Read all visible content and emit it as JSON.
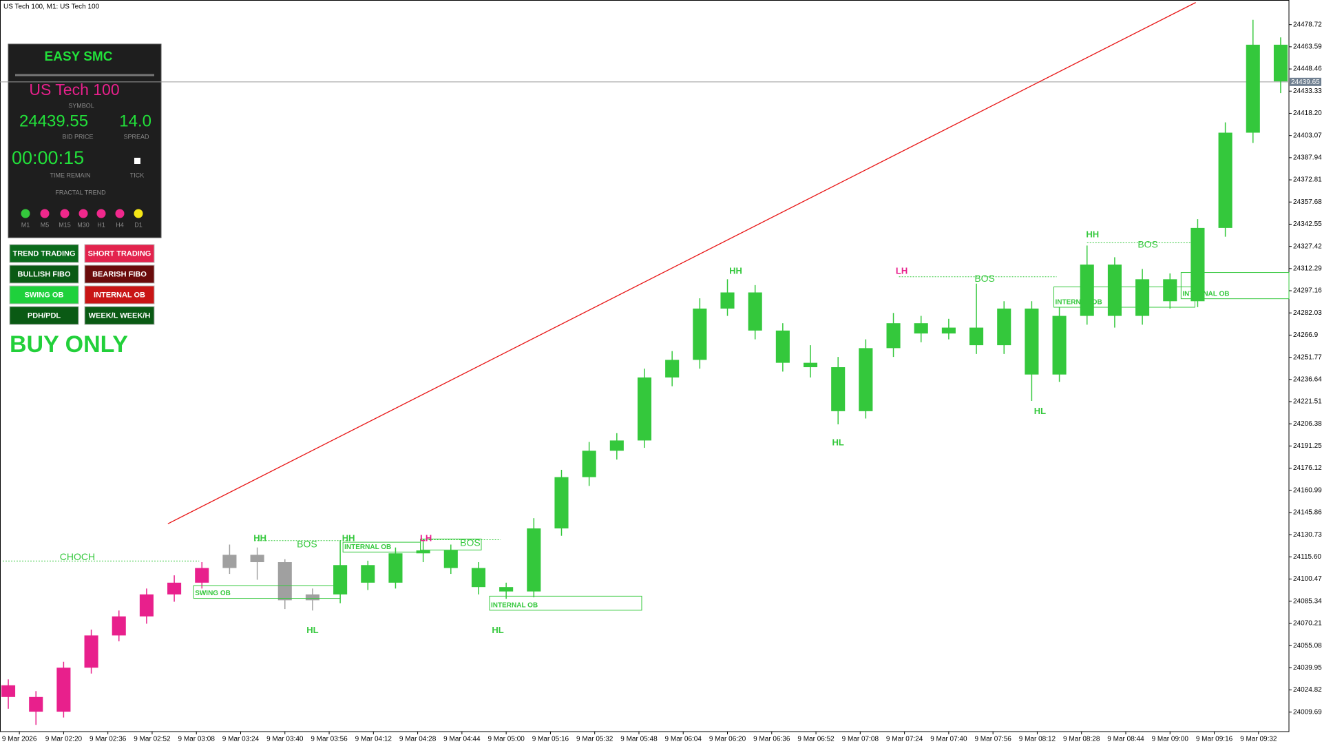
{
  "window_title": "US Tech 100, M1:  US Tech 100",
  "panel": {
    "title": "EASY SMC",
    "symbol": "US Tech 100",
    "symbol_label": "SYMBOL",
    "bid": "24439.55",
    "bid_label": "BID PRICE",
    "spread": "14.0",
    "spread_label": "SPREAD",
    "time": "00:00:15",
    "time_label": "TIME REMAIN",
    "tick_label": "TICK",
    "trend_label": "FRACTAL TREND",
    "trend": [
      {
        "tf": "M1",
        "color": "#34c83c"
      },
      {
        "tf": "M5",
        "color": "#f0288c"
      },
      {
        "tf": "M15",
        "color": "#f0288c"
      },
      {
        "tf": "M30",
        "color": "#f0288c"
      },
      {
        "tf": "H1",
        "color": "#f0288c"
      },
      {
        "tf": "H4",
        "color": "#f0288c"
      },
      {
        "tf": "D1",
        "color": "#f5e616"
      }
    ]
  },
  "buttons": [
    {
      "label": "TREND TRADING",
      "color": "#0b6b1c"
    },
    {
      "label": "SHORT TRADING",
      "color": "#e3234d"
    },
    {
      "label": "BULLISH FIBO",
      "color": "#0a5a14"
    },
    {
      "label": "BEARISH FIBO",
      "color": "#6a0b0b"
    },
    {
      "label": "SWING OB",
      "color": "#1fd13c"
    },
    {
      "label": "INTERNAL OB",
      "color": "#c91515"
    },
    {
      "label": "PDH/PDL",
      "color": "#0a5a14"
    },
    {
      "label": "WEEK/L WEEK/H",
      "color": "#0a5a14"
    }
  ],
  "mode_text": "BUY ONLY",
  "chart_data": {
    "type": "candlestick",
    "xlim": [
      117,
      583
    ],
    "ylim": [
      23996.4,
      24495.5
    ],
    "xticks": [
      {
        "value": 124,
        "label": "9 Mar 2026"
      },
      {
        "value": 140,
        "label": "9 Mar 02:20"
      },
      {
        "value": 156,
        "label": "9 Mar 02:36"
      },
      {
        "value": 172,
        "label": "9 Mar 02:52"
      },
      {
        "value": 188,
        "label": "9 Mar 03:08"
      },
      {
        "value": 204,
        "label": "9 Mar 03:24"
      },
      {
        "value": 220,
        "label": "9 Mar 03:40"
      },
      {
        "value": 236,
        "label": "9 Mar 03:56"
      },
      {
        "value": 252,
        "label": "9 Mar 04:12"
      },
      {
        "value": 268,
        "label": "9 Mar 04:28"
      },
      {
        "value": 284,
        "label": "9 Mar 04:44"
      },
      {
        "value": 300,
        "label": "9 Mar 05:00"
      },
      {
        "value": 316,
        "label": "9 Mar 05:16"
      },
      {
        "value": 332,
        "label": "9 Mar 05:32"
      },
      {
        "value": 348,
        "label": "9 Mar 05:48"
      },
      {
        "value": 364,
        "label": "9 Mar 06:04"
      },
      {
        "value": 380,
        "label": "9 Mar 06:20"
      },
      {
        "value": 396,
        "label": "9 Mar 06:36"
      },
      {
        "value": 412,
        "label": "9 Mar 06:52"
      },
      {
        "value": 428,
        "label": "9 Mar 07:08"
      },
      {
        "value": 444,
        "label": "9 Mar 07:24"
      },
      {
        "value": 460,
        "label": "9 Mar 07:40"
      },
      {
        "value": 476,
        "label": "9 Mar 07:56"
      },
      {
        "value": 492,
        "label": "9 Mar 08:12"
      },
      {
        "value": 508,
        "label": "9 Mar 08:28"
      },
      {
        "value": 524,
        "label": "9 Mar 08:44"
      },
      {
        "value": 540,
        "label": "9 Mar 09:00"
      },
      {
        "value": 556,
        "label": "9 Mar 09:16"
      },
      {
        "value": 572,
        "label": "9 Mar 09:32"
      }
    ],
    "yticks": [
      24009.69,
      24024.82,
      24039.95,
      24055.08,
      24070.21,
      24085.34,
      24100.47,
      {
        "value": 24115.6,
        "label": "24115.60"
      },
      24130.73,
      24145.86,
      24160.99,
      24176.12,
      24191.25,
      24206.38,
      24221.51,
      24236.64,
      24251.77,
      24266.9,
      24282.03,
      24297.16,
      24312.29,
      24327.42,
      24342.55,
      24357.68,
      24372.81,
      24387.94,
      24403.07,
      {
        "value": 24418.2,
        "label": "24418.20"
      },
      24433.33,
      24448.46,
      24463.59,
      24478.72
    ],
    "series": [
      {
        "color": "#e8208c",
        "x": [
          120,
          130,
          140,
          150,
          160,
          170,
          180,
          190
        ],
        "open": [
          24028,
          24020,
          24010,
          24040,
          24062,
          24075,
          24090,
          24098
        ],
        "high": [
          24032,
          24024,
          24044,
          24066,
          24079,
          24094,
          24103,
          24112
        ],
        "low": [
          24012,
          24001,
          24006,
          24036,
          24058,
          24070,
          24085,
          24094
        ],
        "close": [
          24020,
          24010,
          24040,
          24062,
          24075,
          24090,
          24098,
          24108
        ]
      },
      {
        "color": "#a0a0a0",
        "x": [
          200,
          210,
          220,
          230
        ],
        "open": [
          24108,
          24117,
          24112,
          24086
        ],
        "high": [
          24124,
          24122,
          24114,
          24094
        ],
        "low": [
          24104,
          24100,
          24080,
          24079
        ],
        "close": [
          24117,
          24112,
          24086,
          24090
        ]
      },
      {
        "color": "#34c83c",
        "x": [
          240,
          250,
          260,
          270,
          280,
          290,
          300,
          310,
          320,
          330,
          340,
          350,
          360,
          370,
          380,
          390,
          400,
          410,
          420,
          430,
          440,
          450,
          460,
          470,
          480,
          490,
          500,
          510,
          520,
          530,
          540,
          550,
          560,
          570,
          580
        ],
        "open": [
          24090,
          24110,
          24098,
          24118,
          24120,
          24108,
          24095,
          24092,
          24135,
          24170,
          24188,
          24195,
          24238,
          24250,
          24285,
          24296,
          24270,
          24248,
          24245,
          24215,
          24258,
          24275,
          24268,
          24272,
          24260,
          24285,
          24240,
          24280,
          24315,
          24280,
          24305,
          24290,
          24340,
          24405,
          24465
        ],
        "high": [
          24127,
          24113,
          24122,
          24128,
          24124,
          24112,
          24098,
          24142,
          24175,
          24194,
          24200,
          24244,
          24256,
          24292,
          24305,
          24301,
          24275,
          24260,
          24252,
          24264,
          24282,
          24280,
          24278,
          24302,
          24290,
          24290,
          24286,
          24328,
          24320,
          24312,
          24309,
          24346,
          24412,
          24482,
          24470
        ],
        "low": [
          24084,
          24093,
          24094,
          24112,
          24104,
          24090,
          24087,
          24088,
          24130,
          24164,
          24182,
          24190,
          24232,
          24244,
          24280,
          24264,
          24242,
          24238,
          24206,
          24210,
          24252,
          24262,
          24264,
          24254,
          24254,
          24222,
          24235,
          24274,
          24272,
          24274,
          24285,
          24286,
          24334,
          24398,
          24432
        ],
        "close": [
          24110,
          24098,
          24118,
          24120,
          24108,
          24095,
          24092,
          24135,
          24170,
          24188,
          24195,
          24238,
          24250,
          24285,
          24296,
          24270,
          24248,
          24245,
          24215,
          24258,
          24275,
          24268,
          24272,
          24260,
          24285,
          24240,
          24280,
          24315,
          24280,
          24305,
          24290,
          24340,
          24405,
          24465,
          24440
        ]
      }
    ],
    "trendline": {
      "color": "#e81818",
      "x": [
        177.7,
        549.3
      ],
      "values": [
        24138.2,
        24493.8
      ]
    },
    "price_line": {
      "value": 24439.65,
      "color": "#9a9a9a"
    },
    "levels": [
      {
        "x": [
          118,
          189
        ],
        "value": 24112.8
      },
      {
        "x": [
          209,
          243
        ],
        "value": 24126.7
      },
      {
        "x": [
          269,
          298
        ],
        "value": 24127.3
      },
      {
        "x": [
          442,
          499
        ],
        "value": 24306.7
      },
      {
        "x": [
          510,
          548
        ],
        "value": 24329.9
      }
    ],
    "zones": [
      {
        "x": [
          187,
          240
        ],
        "y": [
          24096.0,
          24087.3
        ],
        "label": "SWING OB"
      },
      {
        "x": [
          241,
          269
        ],
        "y": [
          24125.6,
          24118.9
        ],
        "label": "INTERNAL OB"
      },
      {
        "x": [
          269,
          291
        ],
        "y": [
          24127.8,
          24120.3
        ]
      },
      {
        "x": [
          294,
          349
        ],
        "y": [
          24088.8,
          24079.2
        ],
        "label": "INTERNAL OB"
      },
      {
        "x": [
          498,
          549
        ],
        "y": [
          24299.8,
          24285.9
        ],
        "label": "INTERNAL OB"
      },
      {
        "x": [
          544,
          583
        ],
        "y": [
          24309.6,
          24291.7
        ],
        "label": "INTERNAL OB"
      }
    ],
    "zone_color": "#34c83c",
    "labels": [
      {
        "text": "CHOCH",
        "x": 145,
        "y": 24115.1,
        "color": "#34c83c",
        "bold": false
      },
      {
        "text": "HH",
        "x": 211,
        "y": 24128,
        "color": "#34c83c",
        "bold": true
      },
      {
        "text": "BOS",
        "x": 228,
        "y": 24123.8,
        "color": "#34c83c",
        "bold": false
      },
      {
        "text": "HH",
        "x": 243,
        "y": 24128,
        "color": "#34c83c",
        "bold": true
      },
      {
        "text": "LH",
        "x": 271,
        "y": 24128,
        "color": "#e8208c",
        "bold": true
      },
      {
        "text": "BOS",
        "x": 287,
        "y": 24124.9,
        "color": "#34c83c",
        "bold": false
      },
      {
        "text": "HL",
        "x": 230,
        "y": 24065.3,
        "color": "#34c83c",
        "bold": true
      },
      {
        "text": "HL",
        "x": 297,
        "y": 24065.3,
        "color": "#34c83c",
        "bold": true
      },
      {
        "text": "HH",
        "x": 383,
        "y": 24310.2,
        "color": "#34c83c",
        "bold": true
      },
      {
        "text": "HL",
        "x": 420,
        "y": 24193.2,
        "color": "#34c83c",
        "bold": true
      },
      {
        "text": "LH",
        "x": 443,
        "y": 24310.2,
        "color": "#e8208c",
        "bold": true
      },
      {
        "text": "BOS",
        "x": 473,
        "y": 24305,
        "color": "#34c83c",
        "bold": false
      },
      {
        "text": "HL",
        "x": 493,
        "y": 24214.7,
        "color": "#34c83c",
        "bold": true
      },
      {
        "text": "HH",
        "x": 512,
        "y": 24335.1,
        "color": "#34c83c",
        "bold": true
      },
      {
        "text": "BOS",
        "x": 532,
        "y": 24328.2,
        "color": "#34c83c",
        "bold": false
      }
    ]
  }
}
